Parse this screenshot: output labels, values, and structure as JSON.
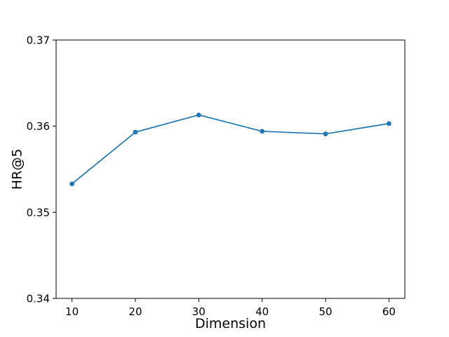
{
  "figure": {
    "background": "#ffffff",
    "plot_background": "#ffffff",
    "spine_color": "#000000"
  },
  "chart_data": {
    "type": "line",
    "title": "",
    "xlabel": "Dimension",
    "ylabel": "HR@5",
    "x": [
      10,
      20,
      30,
      40,
      50,
      60
    ],
    "series": [
      {
        "name": "HR@5",
        "color": "#1f77b4",
        "marker": "circle",
        "values": [
          0.3533,
          0.3593,
          0.3613,
          0.3594,
          0.3591,
          0.3603
        ]
      }
    ],
    "xlim": [
      7.5,
      62.5
    ],
    "ylim": [
      0.34,
      0.37
    ],
    "xticks": [
      {
        "v": 10,
        "label": "10"
      },
      {
        "v": 20,
        "label": "20"
      },
      {
        "v": 30,
        "label": "30"
      },
      {
        "v": 40,
        "label": "40"
      },
      {
        "v": 50,
        "label": "50"
      },
      {
        "v": 60,
        "label": "60"
      }
    ],
    "yticks": [
      {
        "v": 0.34,
        "label": "0.34"
      },
      {
        "v": 0.35,
        "label": "0.35"
      },
      {
        "v": 0.36,
        "label": "0.36"
      },
      {
        "v": 0.37,
        "label": "0.37"
      }
    ],
    "grid": false,
    "legend": "none"
  }
}
